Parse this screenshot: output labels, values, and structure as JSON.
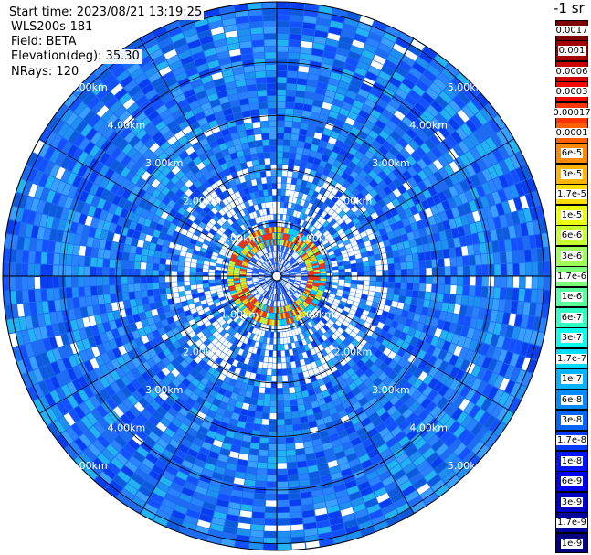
{
  "header": {
    "start_time": "Start time: 2023/08/21 13:19:25",
    "instrument": "WLS200s-181",
    "field": "Field: BETA",
    "elevation": "Elevation(deg): 35.30",
    "nrays": "NRays: 120"
  },
  "ppi": {
    "ring_labels": [
      "1.00km",
      "2.00km",
      "3.00km",
      "4.00km",
      "5.00km"
    ],
    "range_km_max": 5.5,
    "gridline_color": "#000000",
    "label_color": "#ffffff"
  },
  "colorbar": {
    "title": "-1 sr",
    "labels": [
      "0.0017",
      "0.001",
      "0.0006",
      "0.0003",
      "0.00017",
      "0.0001",
      "6e-5",
      "3e-5",
      "1.7e-5",
      "1e-5",
      "6e-6",
      "3e-6",
      "1.7e-6",
      "1e-6",
      "6e-7",
      "3e-7",
      "1.7e-7",
      "1e-7",
      "6e-8",
      "3e-8",
      "1.7e-8",
      "1e-8",
      "6e-9",
      "3e-9",
      "1.7e-9",
      "1e-9"
    ],
    "colors": [
      "#7f0000",
      "#a40000",
      "#cc0000",
      "#f00a00",
      "#ff3500",
      "#ff6000",
      "#ff8a00",
      "#ffb400",
      "#ffdd00",
      "#ecff0a",
      "#c6ff30",
      "#a0ff56",
      "#7bff7b",
      "#56ffa0",
      "#30ffc6",
      "#0affec",
      "#00dcff",
      "#00b4ff",
      "#008cff",
      "#0064ff",
      "#003cff",
      "#0014ff",
      "#0000ed",
      "#0000c6",
      "#00009f",
      "#000080"
    ]
  }
}
